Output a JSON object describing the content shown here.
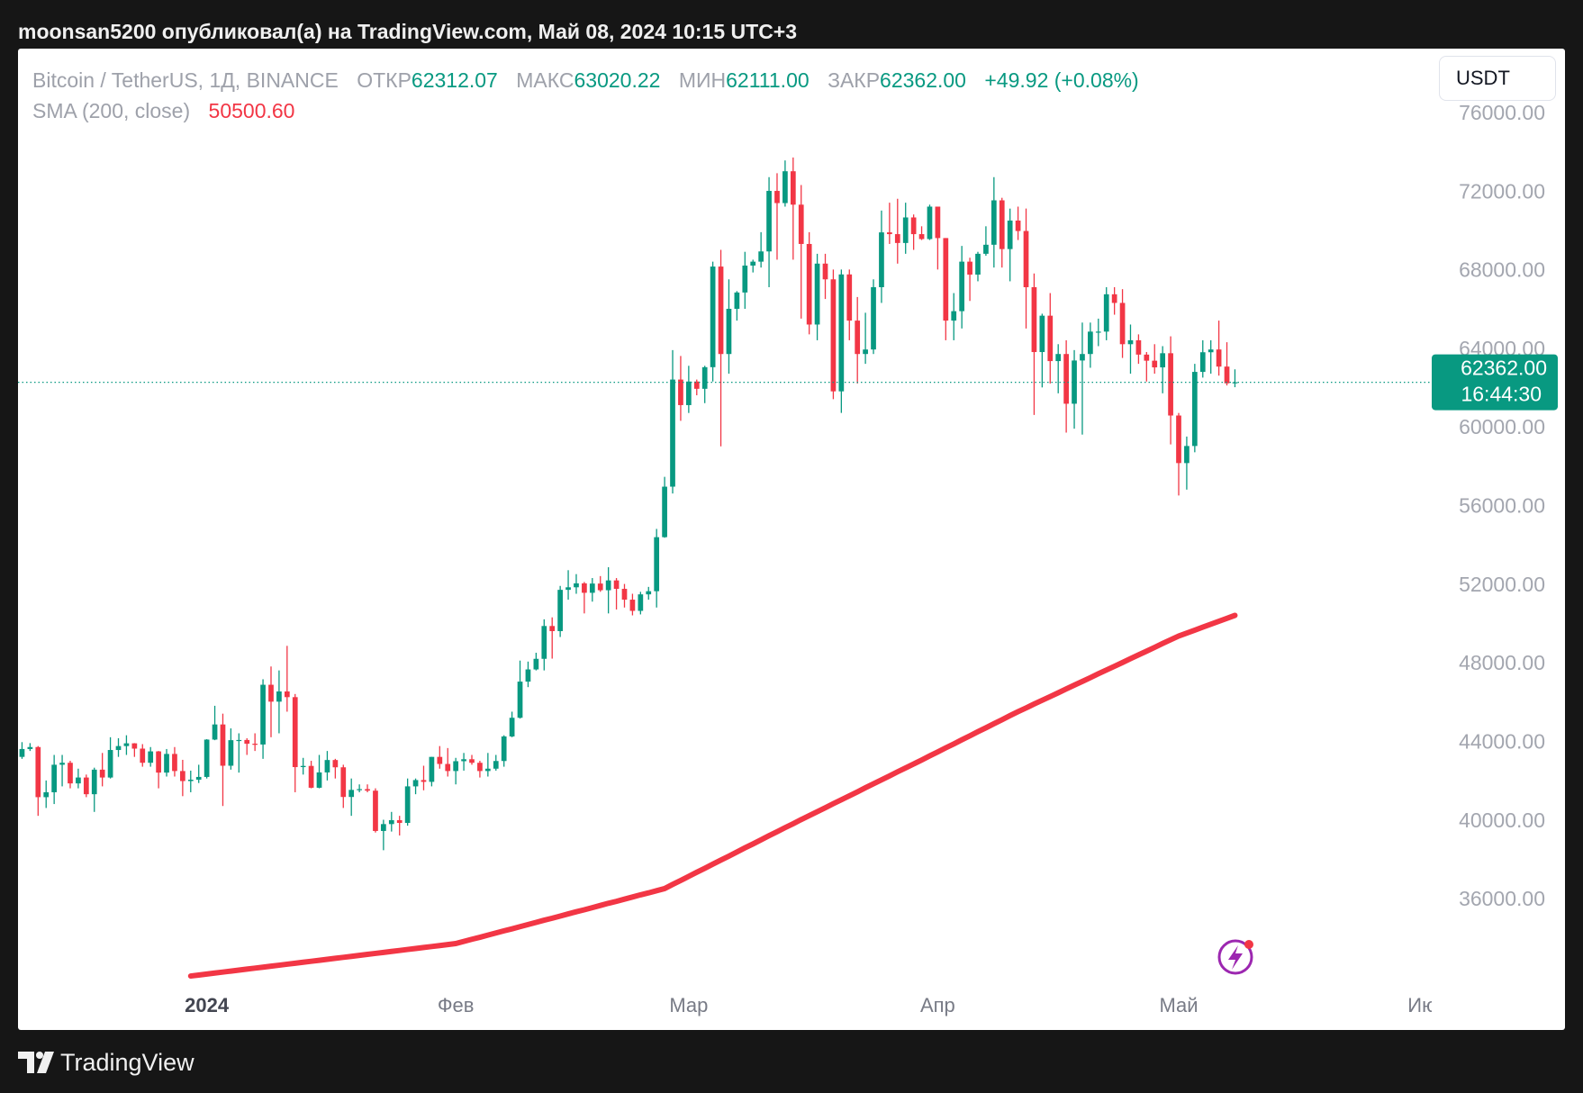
{
  "header": "moonsan5200 опубликовал(а) на TradingView.com, Май 08, 2024 10:15 UTC+3",
  "footer": "TradingView",
  "chart_data": {
    "type": "candlestick",
    "legend": {
      "symbol": "Bitcoin / TetherUS, 1Д, BINANCE",
      "open_label": "ОТКР",
      "open": "62312.07",
      "high_label": "МАКС",
      "high": "63020.22",
      "low_label": "МИН",
      "low": "62111.00",
      "close_label": "ЗАКР",
      "close": "62362.00",
      "change": "+49.92 (+0.08%)",
      "sma_label": "SMA (200, close)",
      "sma_value": "50500.60"
    },
    "currency": "USDT",
    "last_price": {
      "value": 62362,
      "label": "62362.00",
      "countdown": "16:44:30"
    },
    "up_color": "#089981",
    "down_color": "#f23645",
    "sma_color": "#f23645",
    "grid": false,
    "ylim": [
      31740,
      79340
    ],
    "yticks": [
      {
        "value": 36000,
        "label": "36000.00"
      },
      {
        "value": 40000,
        "label": "40000.00"
      },
      {
        "value": 44000,
        "label": "44000.00"
      },
      {
        "value": 48000,
        "label": "48000.00"
      },
      {
        "value": 52000,
        "label": "52000.00"
      },
      {
        "value": 56000,
        "label": "56000.00"
      },
      {
        "value": 60000,
        "label": "60000.00"
      },
      {
        "value": 64000,
        "label": "64000.00"
      },
      {
        "value": 68000,
        "label": "68000.00"
      },
      {
        "value": 72000,
        "label": "72000.00"
      },
      {
        "value": 76000,
        "label": "76000.00"
      }
    ],
    "categories": [
      null,
      null,
      null,
      null,
      null,
      null,
      null,
      null,
      null,
      null,
      null,
      null,
      null,
      null,
      null,
      null,
      null,
      null,
      null,
      null,
      null,
      null,
      null,
      "2024",
      null,
      null,
      null,
      null,
      null,
      null,
      null,
      null,
      null,
      null,
      null,
      null,
      null,
      null,
      null,
      null,
      null,
      null,
      null,
      null,
      null,
      null,
      null,
      null,
      null,
      null,
      null,
      null,
      null,
      null,
      "Фев",
      null,
      null,
      null,
      null,
      null,
      null,
      null,
      null,
      null,
      null,
      null,
      null,
      null,
      null,
      null,
      null,
      null,
      null,
      null,
      null,
      null,
      null,
      null,
      null,
      null,
      null,
      null,
      null,
      "Мар",
      null,
      null,
      null,
      null,
      null,
      null,
      null,
      null,
      null,
      null,
      null,
      null,
      null,
      null,
      null,
      null,
      null,
      null,
      null,
      null,
      null,
      null,
      null,
      null,
      null,
      null,
      null,
      null,
      null,
      null,
      "Апр",
      null,
      null,
      null,
      null,
      null,
      null,
      null,
      null,
      null,
      null,
      null,
      null,
      null,
      null,
      null,
      null,
      null,
      null,
      null,
      null,
      null,
      null,
      null,
      null,
      null,
      null,
      null,
      null,
      null,
      "Май",
      null,
      null,
      null,
      null,
      null,
      null,
      null,
      null,
      null,
      null,
      null,
      null,
      null,
      null,
      null,
      null,
      null,
      null,
      null,
      null,
      null,
      null,
      null,
      null,
      null,
      null,
      null,
      null,
      null,
      null,
      "Июн"
    ],
    "ohlc": [
      [
        43300,
        44050,
        43200,
        43700
      ],
      [
        43700,
        44000,
        43600,
        43800
      ],
      [
        43800,
        43850,
        40300,
        41250
      ],
      [
        41250,
        42100,
        40700,
        41500
      ],
      [
        41500,
        43400,
        40900,
        42900
      ],
      [
        42900,
        43400,
        41800,
        43000
      ],
      [
        43000,
        43100,
        41700,
        41950
      ],
      [
        41950,
        42700,
        41700,
        42250
      ],
      [
        42250,
        42400,
        41250,
        41400
      ],
      [
        41400,
        42750,
        40500,
        42650
      ],
      [
        42650,
        43500,
        41800,
        42250
      ],
      [
        42250,
        44300,
        42200,
        43650
      ],
      [
        43650,
        44250,
        43300,
        43850
      ],
      [
        43850,
        44400,
        43400,
        43990
      ],
      [
        43990,
        44000,
        43300,
        43720
      ],
      [
        43720,
        43950,
        42800,
        43000
      ],
      [
        43000,
        43800,
        42800,
        43580
      ],
      [
        43580,
        43600,
        41700,
        42500
      ],
      [
        42500,
        43700,
        42300,
        43450
      ],
      [
        43450,
        43800,
        42300,
        42580
      ],
      [
        42580,
        43150,
        41300,
        42070
      ],
      [
        42070,
        42600,
        41500,
        42140
      ],
      [
        42140,
        42900,
        41970,
        42280
      ],
      [
        42280,
        44200,
        42200,
        44180
      ],
      [
        44180,
        45900,
        44150,
        44950
      ],
      [
        44950,
        45500,
        40800,
        42850
      ],
      [
        42850,
        44750,
        42650,
        44150
      ],
      [
        44150,
        44500,
        42500,
        44160
      ],
      [
        44160,
        44250,
        43400,
        43970
      ],
      [
        43970,
        44500,
        43600,
        43930
      ],
      [
        43930,
        47250,
        43200,
        46970
      ],
      [
        46970,
        47900,
        44300,
        46110
      ],
      [
        46110,
        47700,
        44500,
        46630
      ],
      [
        46630,
        48950,
        45600,
        46340
      ],
      [
        46340,
        46500,
        41500,
        42780
      ],
      [
        42780,
        43250,
        42400,
        42840
      ],
      [
        42840,
        43100,
        41700,
        41730
      ],
      [
        41730,
        43400,
        41700,
        42510
      ],
      [
        42510,
        43600,
        42100,
        43140
      ],
      [
        43140,
        43200,
        42200,
        42770
      ],
      [
        42770,
        42900,
        40700,
        41260
      ],
      [
        41260,
        42200,
        40300,
        41620
      ],
      [
        41620,
        41900,
        41500,
        41660
      ],
      [
        41660,
        41900,
        41500,
        41580
      ],
      [
        41580,
        41700,
        39450,
        39530
      ],
      [
        39530,
        40100,
        38550,
        39880
      ],
      [
        39880,
        40500,
        39500,
        40080
      ],
      [
        40080,
        40300,
        39300,
        39940
      ],
      [
        39940,
        42200,
        39800,
        41800
      ],
      [
        41800,
        42200,
        41400,
        42120
      ],
      [
        42120,
        42850,
        41600,
        42030
      ],
      [
        42030,
        43300,
        41800,
        43300
      ],
      [
        43300,
        43850,
        42700,
        42940
      ],
      [
        42940,
        43750,
        42300,
        42580
      ],
      [
        42580,
        43250,
        41900,
        43080
      ],
      [
        43080,
        43500,
        42600,
        43180
      ],
      [
        43180,
        43400,
        42900,
        43000
      ],
      [
        43000,
        43100,
        42250,
        42580
      ],
      [
        42580,
        43500,
        42300,
        42700
      ],
      [
        42700,
        43400,
        42600,
        43090
      ],
      [
        43090,
        44400,
        42800,
        44340
      ],
      [
        44340,
        45600,
        44300,
        45290
      ],
      [
        45290,
        48200,
        45250,
        47130
      ],
      [
        47130,
        48150,
        46850,
        47750
      ],
      [
        47750,
        48600,
        47700,
        48290
      ],
      [
        48290,
        50300,
        47700,
        49960
      ],
      [
        49960,
        50400,
        48300,
        49700
      ],
      [
        49700,
        52000,
        49400,
        51800
      ],
      [
        51800,
        52800,
        51300,
        51930
      ],
      [
        51930,
        52600,
        51600,
        52130
      ],
      [
        52130,
        52200,
        50600,
        51650
      ],
      [
        51650,
        52400,
        51200,
        52120
      ],
      [
        52120,
        52500,
        51700,
        51780
      ],
      [
        51780,
        52950,
        50600,
        52280
      ],
      [
        52280,
        52400,
        50800,
        51850
      ],
      [
        51850,
        52100,
        50900,
        51300
      ],
      [
        51300,
        51600,
        50500,
        50730
      ],
      [
        50730,
        51700,
        50550,
        51570
      ],
      [
        51570,
        51950,
        51300,
        51730
      ],
      [
        51730,
        54900,
        50900,
        54480
      ],
      [
        54480,
        57550,
        54450,
        57050
      ],
      [
        57050,
        64000,
        56700,
        62500
      ],
      [
        62500,
        63700,
        60400,
        61200
      ],
      [
        61200,
        63200,
        60800,
        62400
      ],
      [
        62400,
        62500,
        61700,
        62030
      ],
      [
        62030,
        63200,
        61300,
        63130
      ],
      [
        63130,
        68500,
        62400,
        68250
      ],
      [
        68250,
        69100,
        59100,
        63800
      ],
      [
        63800,
        67600,
        62800,
        66100
      ],
      [
        66100,
        67000,
        65500,
        66930
      ],
      [
        66930,
        69000,
        66100,
        68300
      ],
      [
        68300,
        68600,
        67950,
        68500
      ],
      [
        68500,
        70000,
        68200,
        69020
      ],
      [
        69020,
        72800,
        67200,
        72100
      ],
      [
        72100,
        73000,
        68600,
        71480
      ],
      [
        71480,
        73650,
        71300,
        73100
      ],
      [
        73100,
        73800,
        68600,
        71400
      ],
      [
        71400,
        72400,
        65600,
        69400
      ],
      [
        69400,
        70000,
        64800,
        65300
      ],
      [
        65300,
        68900,
        64500,
        68400
      ],
      [
        68400,
        68900,
        66600,
        67600
      ],
      [
        67600,
        68100,
        61500,
        61900
      ],
      [
        61900,
        68100,
        60800,
        67850
      ],
      [
        67850,
        68100,
        64500,
        65500
      ],
      [
        65500,
        66700,
        62300,
        63800
      ],
      [
        63800,
        65900,
        63300,
        64030
      ],
      [
        64030,
        67600,
        63800,
        67200
      ],
      [
        67200,
        71100,
        66400,
        69990
      ],
      [
        69990,
        71500,
        69400,
        69900
      ],
      [
        69900,
        71700,
        68400,
        69450
      ],
      [
        69450,
        71500,
        68900,
        70750
      ],
      [
        70750,
        70900,
        69100,
        69900
      ],
      [
        69900,
        70300,
        69600,
        69650
      ],
      [
        69650,
        71400,
        69600,
        71300
      ],
      [
        71300,
        71300,
        68100,
        69700
      ],
      [
        69700,
        69700,
        64500,
        65500
      ],
      [
        65500,
        66900,
        64500,
        65980
      ],
      [
        65980,
        69300,
        65100,
        68500
      ],
      [
        68500,
        68700,
        66500,
        67840
      ],
      [
        67840,
        69000,
        67500,
        68900
      ],
      [
        68900,
        70300,
        68800,
        69360
      ],
      [
        69360,
        72800,
        68200,
        71620
      ],
      [
        71620,
        71750,
        68200,
        69140
      ],
      [
        69140,
        71200,
        67500,
        70590
      ],
      [
        70590,
        71300,
        69600,
        70060
      ],
      [
        70060,
        71200,
        65100,
        67200
      ],
      [
        67200,
        67900,
        60700,
        63900
      ],
      [
        63900,
        65850,
        62100,
        65750
      ],
      [
        65750,
        66900,
        62300,
        63440
      ],
      [
        63440,
        64300,
        61800,
        63800
      ],
      [
        63800,
        64500,
        59800,
        61270
      ],
      [
        61270,
        64000,
        60000,
        63470
      ],
      [
        63470,
        65400,
        59700,
        63800
      ],
      [
        63800,
        65400,
        63100,
        64940
      ],
      [
        64940,
        65600,
        64200,
        64940
      ],
      [
        64940,
        67200,
        64500,
        66840
      ],
      [
        66840,
        67200,
        65800,
        66400
      ],
      [
        66400,
        67100,
        63600,
        64300
      ],
      [
        64300,
        65300,
        62800,
        64500
      ],
      [
        64500,
        64800,
        63300,
        63770
      ],
      [
        63770,
        63900,
        62400,
        63460
      ],
      [
        63460,
        64300,
        62800,
        63120
      ],
      [
        63120,
        64200,
        61800,
        63840
      ],
      [
        63840,
        64700,
        59200,
        60670
      ],
      [
        60670,
        60800,
        56600,
        58250
      ],
      [
        58250,
        59600,
        56900,
        59120
      ],
      [
        59120,
        63300,
        58800,
        62890
      ],
      [
        62890,
        64500,
        62600,
        63890
      ],
      [
        63890,
        64500,
        62800,
        64030
      ],
      [
        64030,
        65500,
        62700,
        63160
      ],
      [
        63160,
        64400,
        62200,
        62310
      ],
      [
        62312.07,
        63020.22,
        62111,
        62362
      ],
      null,
      null,
      null,
      null,
      null,
      null,
      null,
      null,
      null,
      null,
      null,
      null,
      null,
      null,
      null,
      null,
      null,
      null,
      null,
      null,
      null,
      null,
      null,
      null
    ],
    "sma": [
      null,
      null,
      null,
      null,
      null,
      null,
      null,
      null,
      null,
      null,
      null,
      null,
      null,
      null,
      null,
      null,
      null,
      null,
      null,
      null,
      null,
      32150,
      32200,
      32250,
      32300,
      32350,
      32400,
      32450,
      32500,
      32550,
      32600,
      32650,
      32700,
      32750,
      32800,
      32850,
      32900,
      32950,
      33000,
      33050,
      33100,
      33150,
      33200,
      33250,
      33300,
      33350,
      33400,
      33450,
      33500,
      33550,
      33600,
      33650,
      33700,
      33750,
      33800,
      33910,
      34020,
      34120,
      34230,
      34340,
      34450,
      34550,
      34660,
      34770,
      34880,
      34990,
      35090,
      35200,
      35310,
      35420,
      35520,
      35630,
      35740,
      35850,
      35950,
      36060,
      36170,
      36280,
      36380,
      36490,
      36600,
      36810,
      37010,
      37220,
      37430,
      37630,
      37840,
      38050,
      38250,
      38460,
      38670,
      38870,
      39080,
      39290,
      39490,
      39700,
      39900,
      40110,
      40310,
      40510,
      40710,
      40920,
      41120,
      41320,
      41520,
      41730,
      41930,
      42130,
      42330,
      42540,
      42740,
      42940,
      43140,
      43350,
      43550,
      43760,
      43960,
      44170,
      44370,
      44580,
      44780,
      44990,
      45190,
      45400,
      45600,
      45790,
      45990,
      46180,
      46370,
      46560,
      46760,
      46950,
      47140,
      47330,
      47530,
      47720,
      47910,
      48100,
      48300,
      48490,
      48680,
      48870,
      49070,
      49260,
      49450,
      49600,
      49750,
      49900,
      50050,
      50200,
      50350,
      50500.6,
      null,
      null,
      null,
      null,
      null,
      null,
      null,
      null,
      null,
      null,
      null,
      null,
      null,
      null,
      null,
      null,
      null,
      null,
      null,
      null,
      null,
      null,
      null,
      null
    ]
  }
}
